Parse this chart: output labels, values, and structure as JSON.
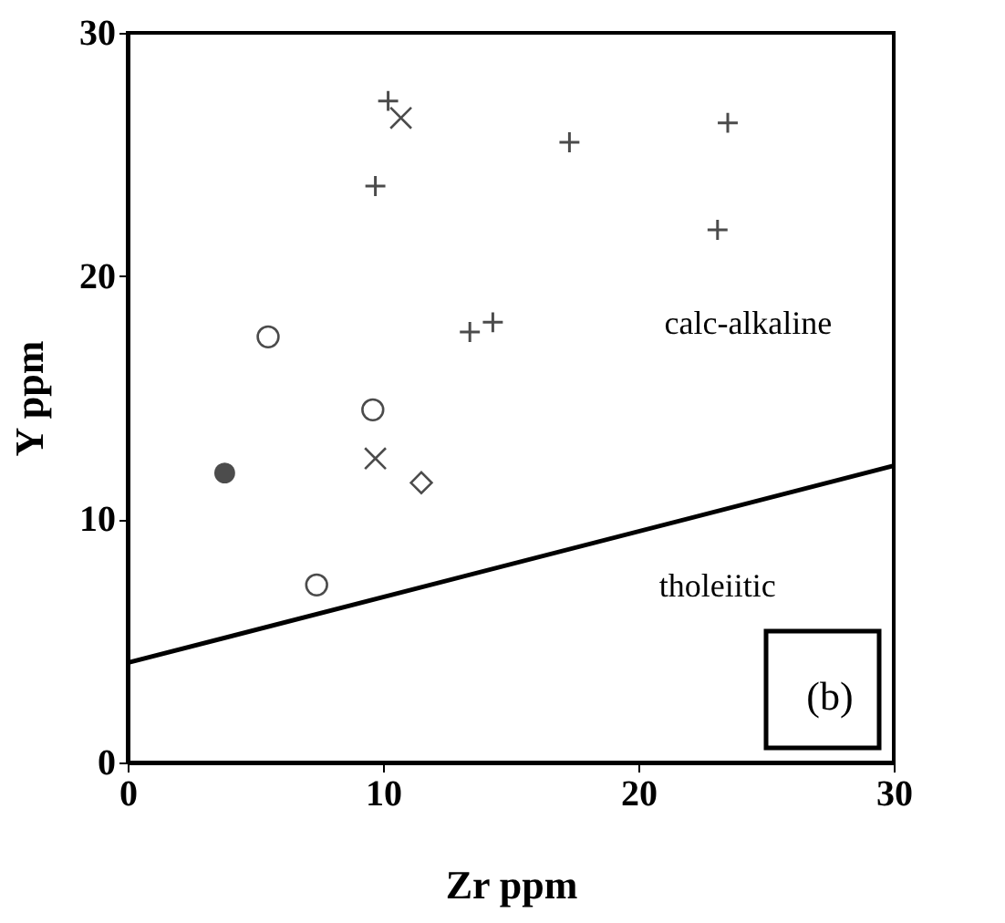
{
  "chart_data": {
    "type": "scatter",
    "xlabel": "Zr  ppm",
    "ylabel": "Y ppm",
    "xlim": [
      0,
      30
    ],
    "ylim": [
      0,
      30
    ],
    "xticks": [
      0,
      10,
      20,
      30
    ],
    "yticks": [
      0,
      10,
      20,
      30
    ],
    "series": [
      {
        "color": "#000000",
        "marker": "cross",
        "x": [
          10.2,
          17.3,
          23.5,
          9.7,
          23.1,
          13.4,
          14.3
        ],
        "values": [
          27.2,
          25.5,
          26.3,
          23.7,
          21.9,
          17.7,
          18.1
        ]
      },
      {
        "color": "#000000",
        "marker": "x",
        "x": [
          10.7,
          9.7
        ],
        "values": [
          26.5,
          12.5
        ]
      },
      {
        "color": "#000000",
        "marker": "circle",
        "x": [
          5.5,
          9.6,
          7.4
        ],
        "values": [
          17.5,
          14.5,
          7.3
        ]
      },
      {
        "color": "#000000",
        "marker": "filled_circle",
        "x": [
          3.8
        ],
        "values": [
          11.9
        ]
      },
      {
        "color": "#000000",
        "marker": "diamond",
        "x": [
          11.5
        ],
        "values": [
          11.5
        ]
      },
      {
        "type": "line",
        "color": "#000000",
        "line_style": "solid",
        "x": [
          0,
          30
        ],
        "values": [
          4.1,
          12.2
        ]
      }
    ],
    "annotations": [
      "calc-alkaline",
      "tholeiitic",
      "(b)"
    ]
  }
}
